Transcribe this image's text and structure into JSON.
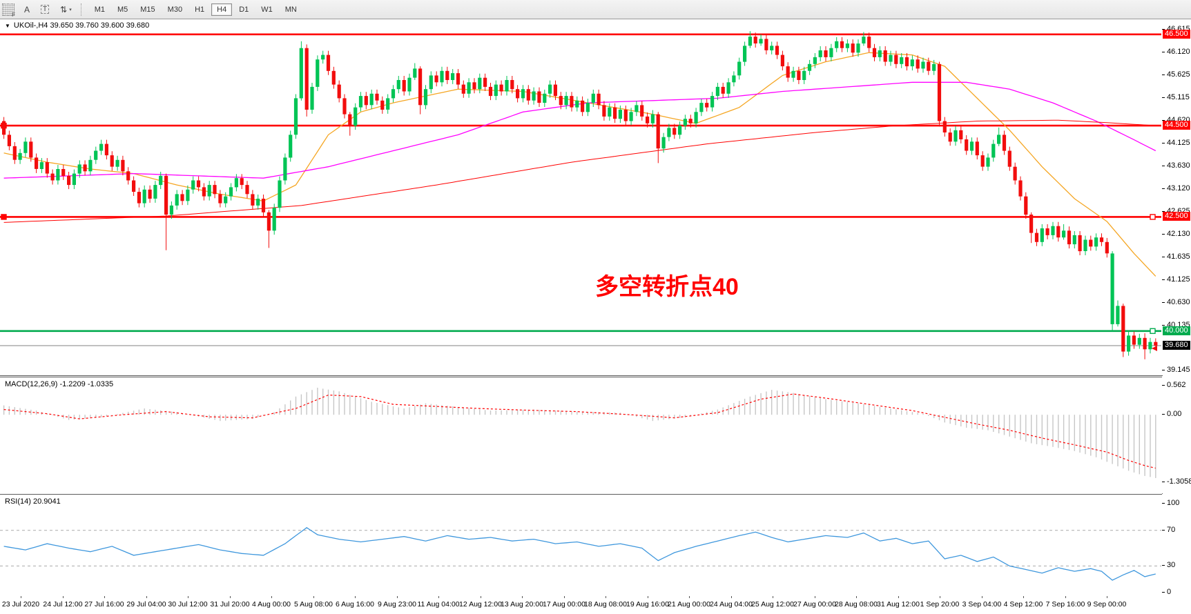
{
  "toolbar": {
    "handle_label": "F",
    "tools": [
      {
        "glyph": "A"
      },
      {
        "glyph": "T"
      },
      {
        "glyph": "⇅",
        "caret": "▾"
      }
    ],
    "timeframes": [
      "M1",
      "M5",
      "M15",
      "M30",
      "H1",
      "H4",
      "D1",
      "W1",
      "MN"
    ],
    "active_timeframe": "H4"
  },
  "header": {
    "collapse_arrow": "▼",
    "symbol_info": "UKOil-,H4  39.650 39.760 39.600 39.680"
  },
  "annotation": {
    "text": "多空转折点40",
    "color": "#ff0000"
  },
  "colors": {
    "bull": "#00c455",
    "bear": "#f20d0d",
    "hline_red": "#ff0000",
    "hline_green": "#00ab4e",
    "ma_fast": "#f5a623",
    "ma_mid": "#ff00ff",
    "ma_slow": "#ff0000",
    "macd_hist": "#c6c6c6",
    "macd_signal": "#ff0000",
    "rsi_line": "#3e97dd",
    "level_dash": "#aaaaaa",
    "price_line": "#808080",
    "price_label_bg": "#000000"
  },
  "chart_data": {
    "type": "candlestick",
    "symbol": "UKOil-",
    "timeframe": "H4",
    "first_open": 44.6,
    "closes": [
      44.3,
      44.05,
      43.75,
      43.9,
      44.15,
      43.8,
      43.55,
      43.7,
      43.45,
      43.3,
      43.55,
      43.4,
      43.2,
      43.45,
      43.65,
      43.5,
      43.75,
      43.95,
      44.1,
      43.85,
      43.6,
      43.75,
      43.5,
      43.3,
      43.05,
      42.8,
      43.1,
      42.9,
      43.2,
      43.4,
      42.55,
      42.75,
      43.0,
      42.85,
      43.1,
      43.3,
      43.15,
      42.95,
      43.2,
      43.0,
      42.8,
      42.95,
      43.15,
      43.35,
      43.2,
      43.0,
      42.75,
      42.9,
      42.6,
      42.2,
      42.7,
      43.3,
      43.8,
      44.3,
      45.1,
      46.2,
      44.85,
      45.35,
      45.95,
      46.05,
      45.7,
      45.4,
      45.1,
      44.75,
      44.5,
      44.9,
      45.15,
      44.95,
      45.2,
      45.05,
      44.85,
      45.1,
      45.3,
      45.5,
      45.25,
      45.55,
      45.75,
      44.95,
      45.3,
      45.6,
      45.45,
      45.7,
      45.5,
      45.65,
      45.4,
      45.2,
      45.45,
      45.3,
      45.55,
      45.35,
      45.15,
      45.4,
      45.25,
      45.5,
      45.3,
      45.1,
      45.3,
      45.05,
      45.25,
      45.0,
      45.2,
      45.4,
      45.15,
      44.95,
      45.15,
      44.9,
      45.05,
      44.8,
      45.0,
      45.2,
      44.95,
      44.7,
      44.9,
      44.65,
      44.85,
      44.6,
      44.8,
      44.95,
      44.7,
      44.55,
      44.75,
      44.0,
      44.25,
      44.45,
      44.3,
      44.5,
      44.65,
      44.55,
      44.8,
      45.0,
      44.9,
      45.15,
      45.35,
      45.2,
      45.45,
      45.6,
      45.9,
      46.25,
      46.45,
      46.3,
      46.4,
      46.15,
      46.25,
      46.05,
      45.8,
      45.55,
      45.7,
      45.5,
      45.7,
      45.85,
      46.0,
      46.15,
      46.0,
      46.2,
      46.35,
      46.2,
      46.3,
      46.1,
      46.3,
      46.45,
      46.2,
      46.0,
      46.15,
      45.9,
      46.05,
      45.85,
      46.0,
      45.8,
      45.95,
      45.75,
      45.9,
      45.7,
      45.85,
      44.6,
      44.35,
      44.15,
      44.4,
      44.2,
      43.95,
      44.15,
      43.85,
      43.6,
      43.8,
      44.1,
      44.3,
      43.95,
      43.6,
      43.3,
      42.95,
      42.55,
      42.15,
      41.95,
      42.25,
      42.1,
      42.3,
      42.05,
      42.2,
      41.9,
      42.1,
      41.75,
      42.0,
      41.85,
      42.05,
      41.95,
      41.7,
      40.15,
      40.55,
      39.55,
      39.9,
      39.7,
      39.85,
      39.6,
      39.76,
      39.68
    ],
    "default_wick": [
      0.09,
      0.09
    ],
    "special_wicks": {
      "30": [
        0.05,
        0.78
      ],
      "49": [
        0.05,
        0.38
      ],
      "55": [
        0.15,
        0.05
      ],
      "56": [
        0.08,
        0.15
      ],
      "64": [
        0.05,
        0.22
      ],
      "76": [
        0.12,
        0.05
      ],
      "77": [
        0.05,
        0.2
      ],
      "121": [
        0.05,
        0.32
      ],
      "138": [
        0.12,
        0.05
      ],
      "140": [
        0.1,
        0.05
      ],
      "159": [
        0.1,
        0.05
      ],
      "173": [
        0.05,
        0.12
      ],
      "184": [
        0.16,
        0.05
      ],
      "190": [
        0.05,
        0.22
      ],
      "196": [
        0.14,
        0.05
      ],
      "205": [
        0.05,
        0.15
      ],
      "206": [
        0.12,
        0.05
      ],
      "207": [
        0.05,
        0.12
      ],
      "211": [
        0.1,
        0.22
      ],
      "213": [
        0.08,
        0.06
      ]
    },
    "color_overrides": {
      "205": "bull"
    },
    "price_axis": {
      "min": 39.03,
      "max": 46.83,
      "ticks": [
        "46.615",
        "46.120",
        "45.625",
        "45.115",
        "44.620",
        "44.125",
        "43.630",
        "43.120",
        "42.625",
        "42.130",
        "41.635",
        "41.125",
        "40.630",
        "40.135",
        "39.145"
      ]
    },
    "hlines": [
      {
        "value": 46.5,
        "label": "46.500",
        "color": "#ff0000",
        "anchors": []
      },
      {
        "value": 44.5,
        "label": "44.500",
        "color": "#ff0000",
        "anchors": [
          "left"
        ]
      },
      {
        "value": 42.5,
        "label": "42.500",
        "color": "#ff0000",
        "anchors": [
          "left",
          "right"
        ]
      },
      {
        "value": 40.0,
        "label": "40.000",
        "color": "#00ab4e",
        "anchors": [
          "right"
        ]
      }
    ],
    "current_price": {
      "value": 39.68,
      "label": "39.680"
    },
    "ma_lines": [
      {
        "name": "ma-fast-orange",
        "color": "#f5a623",
        "width": 1.3,
        "points": [
          [
            0,
            43.9
          ],
          [
            8,
            43.7
          ],
          [
            16,
            43.55
          ],
          [
            24,
            43.45
          ],
          [
            32,
            43.2
          ],
          [
            40,
            43.0
          ],
          [
            48,
            42.85
          ],
          [
            54,
            43.2
          ],
          [
            60,
            44.3
          ],
          [
            66,
            44.8
          ],
          [
            72,
            45.0
          ],
          [
            84,
            45.3
          ],
          [
            96,
            45.25
          ],
          [
            108,
            45.0
          ],
          [
            120,
            44.75
          ],
          [
            128,
            44.55
          ],
          [
            136,
            44.9
          ],
          [
            144,
            45.6
          ],
          [
            152,
            45.9
          ],
          [
            160,
            46.1
          ],
          [
            168,
            46.05
          ],
          [
            174,
            45.8
          ],
          [
            180,
            45.1
          ],
          [
            186,
            44.4
          ],
          [
            192,
            43.6
          ],
          [
            198,
            42.9
          ],
          [
            204,
            42.4
          ],
          [
            209,
            41.7
          ],
          [
            213,
            41.2
          ]
        ]
      },
      {
        "name": "ma-mid-magenta",
        "color": "#ff00ff",
        "width": 1.3,
        "points": [
          [
            0,
            43.35
          ],
          [
            12,
            43.4
          ],
          [
            24,
            43.45
          ],
          [
            36,
            43.4
          ],
          [
            48,
            43.35
          ],
          [
            60,
            43.6
          ],
          [
            72,
            43.95
          ],
          [
            84,
            44.3
          ],
          [
            96,
            44.8
          ],
          [
            108,
            45.0
          ],
          [
            120,
            45.05
          ],
          [
            132,
            45.1
          ],
          [
            144,
            45.25
          ],
          [
            156,
            45.35
          ],
          [
            168,
            45.45
          ],
          [
            178,
            45.45
          ],
          [
            186,
            45.3
          ],
          [
            194,
            45.0
          ],
          [
            202,
            44.6
          ],
          [
            208,
            44.25
          ],
          [
            213,
            43.95
          ]
        ]
      },
      {
        "name": "ma-slow-red",
        "color": "#ff0000",
        "width": 1,
        "points": [
          [
            0,
            42.38
          ],
          [
            30,
            42.52
          ],
          [
            55,
            42.75
          ],
          [
            80,
            43.2
          ],
          [
            105,
            43.7
          ],
          [
            130,
            44.1
          ],
          [
            150,
            44.35
          ],
          [
            165,
            44.5
          ],
          [
            180,
            44.6
          ],
          [
            195,
            44.62
          ],
          [
            205,
            44.56
          ],
          [
            213,
            44.5
          ]
        ]
      }
    ],
    "macd": {
      "label": "MACD(12,26,9) -1.2209 -1.0335",
      "range": [
        -1.5,
        0.72
      ],
      "ticks": [
        "0.562",
        "0.00",
        "-1.3058"
      ],
      "hist_keyframes": [
        [
          0,
          0.18
        ],
        [
          6,
          0.08
        ],
        [
          12,
          -0.1
        ],
        [
          18,
          -0.05
        ],
        [
          26,
          0.12
        ],
        [
          32,
          0.05
        ],
        [
          40,
          -0.12
        ],
        [
          46,
          -0.08
        ],
        [
          50,
          0.05
        ],
        [
          54,
          0.35
        ],
        [
          58,
          0.52
        ],
        [
          62,
          0.45
        ],
        [
          68,
          0.25
        ],
        [
          74,
          0.12
        ],
        [
          78,
          0.22
        ],
        [
          84,
          0.15
        ],
        [
          90,
          0.08
        ],
        [
          98,
          0.1
        ],
        [
          106,
          0.06
        ],
        [
          114,
          0.04
        ],
        [
          120,
          -0.12
        ],
        [
          126,
          -0.05
        ],
        [
          132,
          0.1
        ],
        [
          138,
          0.35
        ],
        [
          142,
          0.48
        ],
        [
          146,
          0.42
        ],
        [
          152,
          0.3
        ],
        [
          158,
          0.22
        ],
        [
          164,
          0.12
        ],
        [
          170,
          0.02
        ],
        [
          174,
          -0.15
        ],
        [
          178,
          -0.25
        ],
        [
          182,
          -0.3
        ],
        [
          186,
          -0.42
        ],
        [
          190,
          -0.55
        ],
        [
          194,
          -0.62
        ],
        [
          198,
          -0.7
        ],
        [
          202,
          -0.82
        ],
        [
          205,
          -0.95
        ],
        [
          208,
          -1.08
        ],
        [
          211,
          -1.18
        ],
        [
          213,
          -1.22
        ]
      ],
      "signal_keyframes": [
        [
          0,
          0.1
        ],
        [
          8,
          0.02
        ],
        [
          14,
          -0.08
        ],
        [
          22,
          0.0
        ],
        [
          30,
          0.06
        ],
        [
          38,
          -0.04
        ],
        [
          46,
          -0.06
        ],
        [
          54,
          0.12
        ],
        [
          60,
          0.38
        ],
        [
          66,
          0.35
        ],
        [
          72,
          0.2
        ],
        [
          80,
          0.16
        ],
        [
          88,
          0.12
        ],
        [
          96,
          0.09
        ],
        [
          106,
          0.06
        ],
        [
          116,
          0.0
        ],
        [
          124,
          -0.06
        ],
        [
          132,
          0.04
        ],
        [
          140,
          0.3
        ],
        [
          146,
          0.4
        ],
        [
          152,
          0.32
        ],
        [
          160,
          0.2
        ],
        [
          168,
          0.08
        ],
        [
          174,
          -0.05
        ],
        [
          180,
          -0.18
        ],
        [
          186,
          -0.3
        ],
        [
          192,
          -0.45
        ],
        [
          198,
          -0.58
        ],
        [
          204,
          -0.72
        ],
        [
          208,
          -0.88
        ],
        [
          211,
          -0.98
        ],
        [
          213,
          -1.03
        ]
      ]
    },
    "rsi": {
      "label": "RSI(14) 20.9041",
      "range": [
        -3,
        110
      ],
      "ticks": [
        "100",
        "70",
        "30",
        "0"
      ],
      "tick_values": [
        100,
        70,
        30,
        0
      ],
      "dashed_levels": [
        70,
        30
      ],
      "keyframes": [
        [
          0,
          52
        ],
        [
          4,
          48
        ],
        [
          8,
          55
        ],
        [
          12,
          50
        ],
        [
          16,
          46
        ],
        [
          20,
          52
        ],
        [
          24,
          42
        ],
        [
          28,
          46
        ],
        [
          32,
          50
        ],
        [
          36,
          54
        ],
        [
          40,
          48
        ],
        [
          44,
          44
        ],
        [
          48,
          42
        ],
        [
          52,
          55
        ],
        [
          56,
          73
        ],
        [
          58,
          65
        ],
        [
          62,
          60
        ],
        [
          66,
          57
        ],
        [
          70,
          60
        ],
        [
          74,
          63
        ],
        [
          78,
          58
        ],
        [
          82,
          64
        ],
        [
          86,
          60
        ],
        [
          90,
          62
        ],
        [
          94,
          58
        ],
        [
          98,
          60
        ],
        [
          102,
          55
        ],
        [
          106,
          57
        ],
        [
          110,
          52
        ],
        [
          114,
          55
        ],
        [
          118,
          50
        ],
        [
          121,
          36
        ],
        [
          124,
          45
        ],
        [
          128,
          52
        ],
        [
          132,
          58
        ],
        [
          136,
          64
        ],
        [
          139,
          68
        ],
        [
          142,
          62
        ],
        [
          145,
          57
        ],
        [
          148,
          60
        ],
        [
          152,
          64
        ],
        [
          156,
          62
        ],
        [
          159,
          67
        ],
        [
          162,
          58
        ],
        [
          165,
          61
        ],
        [
          168,
          55
        ],
        [
          171,
          58
        ],
        [
          174,
          38
        ],
        [
          177,
          42
        ],
        [
          180,
          35
        ],
        [
          183,
          40
        ],
        [
          186,
          30
        ],
        [
          189,
          26
        ],
        [
          192,
          22
        ],
        [
          195,
          28
        ],
        [
          198,
          24
        ],
        [
          201,
          27
        ],
        [
          203,
          24
        ],
        [
          205,
          14
        ],
        [
          207,
          20
        ],
        [
          209,
          25
        ],
        [
          211,
          18
        ],
        [
          213,
          21
        ]
      ]
    },
    "x_labels": [
      "23 Jul 2020",
      "24 Jul 12:00",
      "27 Jul 16:00",
      "29 Jul 04:00",
      "30 Jul 12:00",
      "31 Jul 20:00",
      "4 Aug 00:00",
      "5 Aug 08:00",
      "6 Aug 16:00",
      "9 Aug 23:00",
      "11 Aug 04:00",
      "12 Aug 12:00",
      "13 Aug 20:00",
      "17 Aug 00:00",
      "18 Aug 08:00",
      "19 Aug 16:00",
      "21 Aug 00:00",
      "24 Aug 04:00",
      "25 Aug 12:00",
      "27 Aug 00:00",
      "28 Aug 08:00",
      "31 Aug 12:00",
      "1 Sep 20:00",
      "3 Sep 04:00",
      "4 Sep 12:00",
      "7 Sep 16:00",
      "9 Sep 00:00"
    ]
  }
}
